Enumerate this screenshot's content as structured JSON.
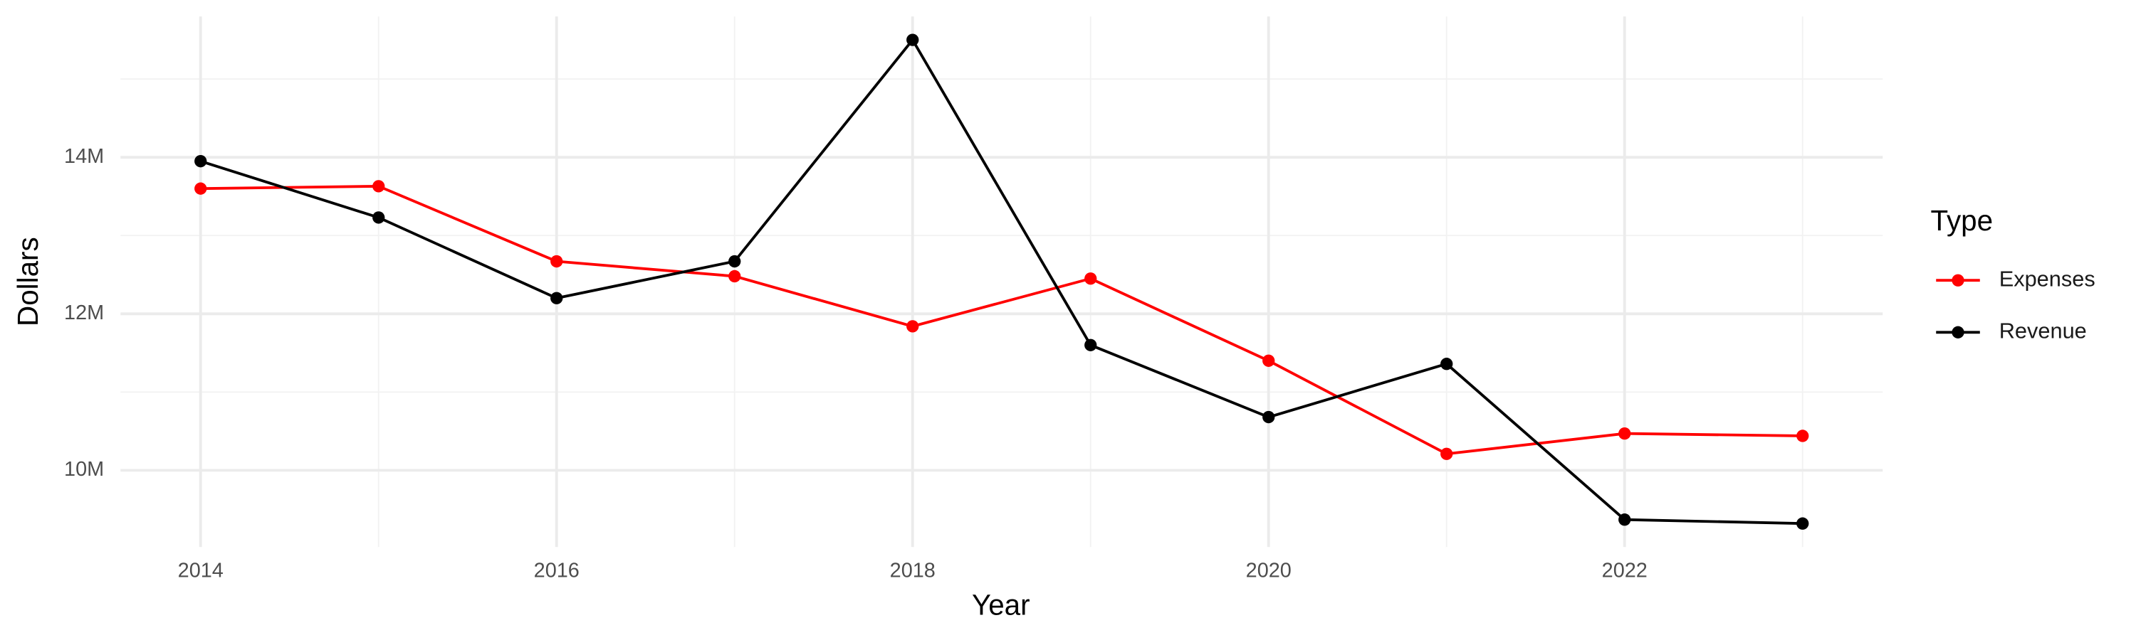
{
  "chart_data": {
    "type": "line",
    "x_label": "Year",
    "y_label": "Dollars",
    "legend_title": "Type",
    "x": [
      2014,
      2015,
      2016,
      2017,
      2018,
      2019,
      2020,
      2021,
      2022,
      2023
    ],
    "series": [
      {
        "name": "Expenses",
        "color": "#ff0000",
        "values": [
          13600000,
          13630000,
          12670000,
          12480000,
          11840000,
          12450000,
          11400000,
          10210000,
          10470000,
          10440000
        ]
      },
      {
        "name": "Revenue",
        "color": "#000000",
        "values": [
          13950000,
          13230000,
          12200000,
          12670000,
          15500000,
          11600000,
          10680000,
          11360000,
          9370000,
          9320000
        ]
      }
    ],
    "xlim": [
      2013.55,
      2023.45
    ],
    "xticks": [
      2014,
      2016,
      2018,
      2020,
      2022
    ],
    "ylim": [
      9020000,
      15800000
    ],
    "yticks": [
      {
        "value": 10000000,
        "label": "10M"
      },
      {
        "value": 12000000,
        "label": "12M"
      },
      {
        "value": 14000000,
        "label": "14M"
      }
    ],
    "grid": true,
    "legend": "right"
  }
}
